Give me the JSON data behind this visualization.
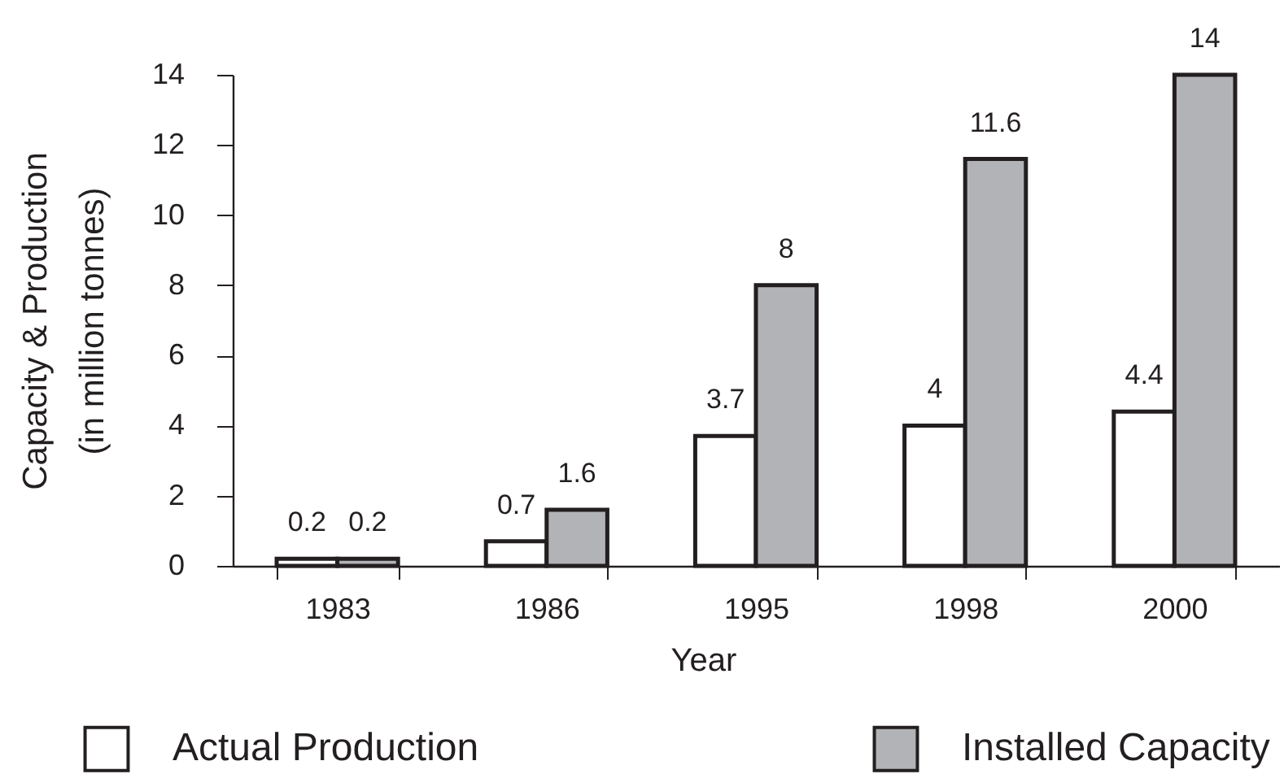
{
  "chart_data": {
    "type": "bar",
    "categories": [
      "1983",
      "1986",
      "1995",
      "1998",
      "2000"
    ],
    "series": [
      {
        "name": "Actual Production",
        "color": "#ffffff",
        "values": [
          0.2,
          0.7,
          3.7,
          4,
          4.4
        ]
      },
      {
        "name": "Installed Capacity",
        "color": "#b2b3b6",
        "values": [
          0.2,
          1.6,
          8,
          11.6,
          14
        ]
      }
    ],
    "xlabel": "Year",
    "ylabel": "Capacity & Production\n(in million tonnes)",
    "ylim": [
      0,
      14
    ],
    "yticks": [
      0,
      2,
      4,
      6,
      8,
      10,
      12,
      14
    ],
    "grid": false,
    "legend": "bottom",
    "data_labels": true
  }
}
